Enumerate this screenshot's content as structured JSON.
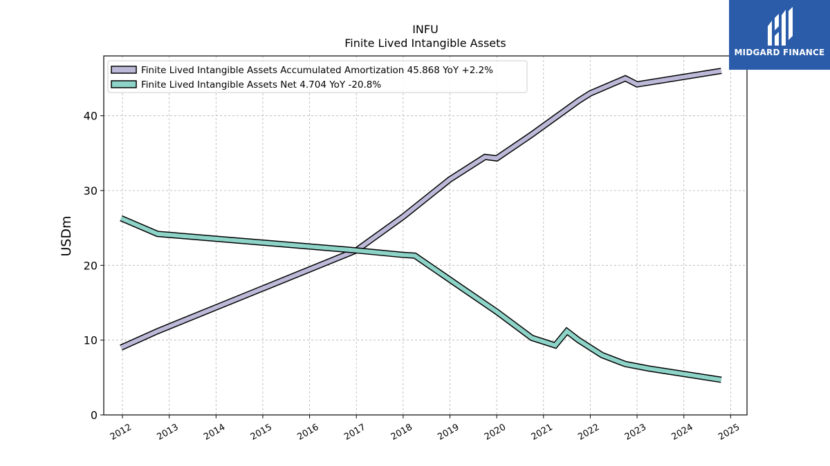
{
  "chart_data": {
    "type": "line",
    "title": "INFU",
    "subtitle": "Finite Lived Intangible Assets",
    "ylabel": "USDm",
    "xlabel": "",
    "ylim": [
      0,
      48
    ],
    "xlim": [
      2011.6,
      2025.35
    ],
    "yticks": [
      0,
      10,
      20,
      30,
      40
    ],
    "xticks": [
      "2012",
      "2013",
      "2014",
      "2015",
      "2016",
      "2017",
      "2018",
      "2019",
      "2020",
      "2021",
      "2022",
      "2023",
      "2024",
      "2025"
    ],
    "grid": true,
    "legend_position": "top-left",
    "series": [
      {
        "name": "Finite Lived Intangible Assets Accumulated Amortization  45.868 YoY +2.2%",
        "color": "#bcb9d8",
        "points": [
          [
            2011.97,
            9.0
          ],
          [
            2012.75,
            11.2
          ],
          [
            2017.0,
            22.0
          ],
          [
            2018.0,
            26.5
          ],
          [
            2019.0,
            31.5
          ],
          [
            2019.75,
            34.5
          ],
          [
            2020.0,
            34.3
          ],
          [
            2020.75,
            37.5
          ],
          [
            2021.75,
            42.0
          ],
          [
            2022.0,
            43.0
          ],
          [
            2022.75,
            45.0
          ],
          [
            2023.0,
            44.2
          ],
          [
            2024.8,
            46.0
          ]
        ]
      },
      {
        "name": "Finite Lived Intangible Assets Net  4.704 YoY -20.8%",
        "color": "#8dd3c7",
        "points": [
          [
            2011.97,
            26.3
          ],
          [
            2012.75,
            24.2
          ],
          [
            2017.0,
            22.0
          ],
          [
            2018.0,
            21.4
          ],
          [
            2018.25,
            21.3
          ],
          [
            2019.25,
            17.0
          ],
          [
            2020.0,
            13.8
          ],
          [
            2020.75,
            10.3
          ],
          [
            2021.25,
            9.3
          ],
          [
            2021.5,
            11.2
          ],
          [
            2021.75,
            10.0
          ],
          [
            2022.25,
            8.0
          ],
          [
            2022.75,
            6.8
          ],
          [
            2023.25,
            6.2
          ],
          [
            2024.8,
            4.7
          ]
        ]
      }
    ]
  },
  "logo": {
    "name": "MIDGARD FINANCE",
    "color": "#2a5caa"
  }
}
